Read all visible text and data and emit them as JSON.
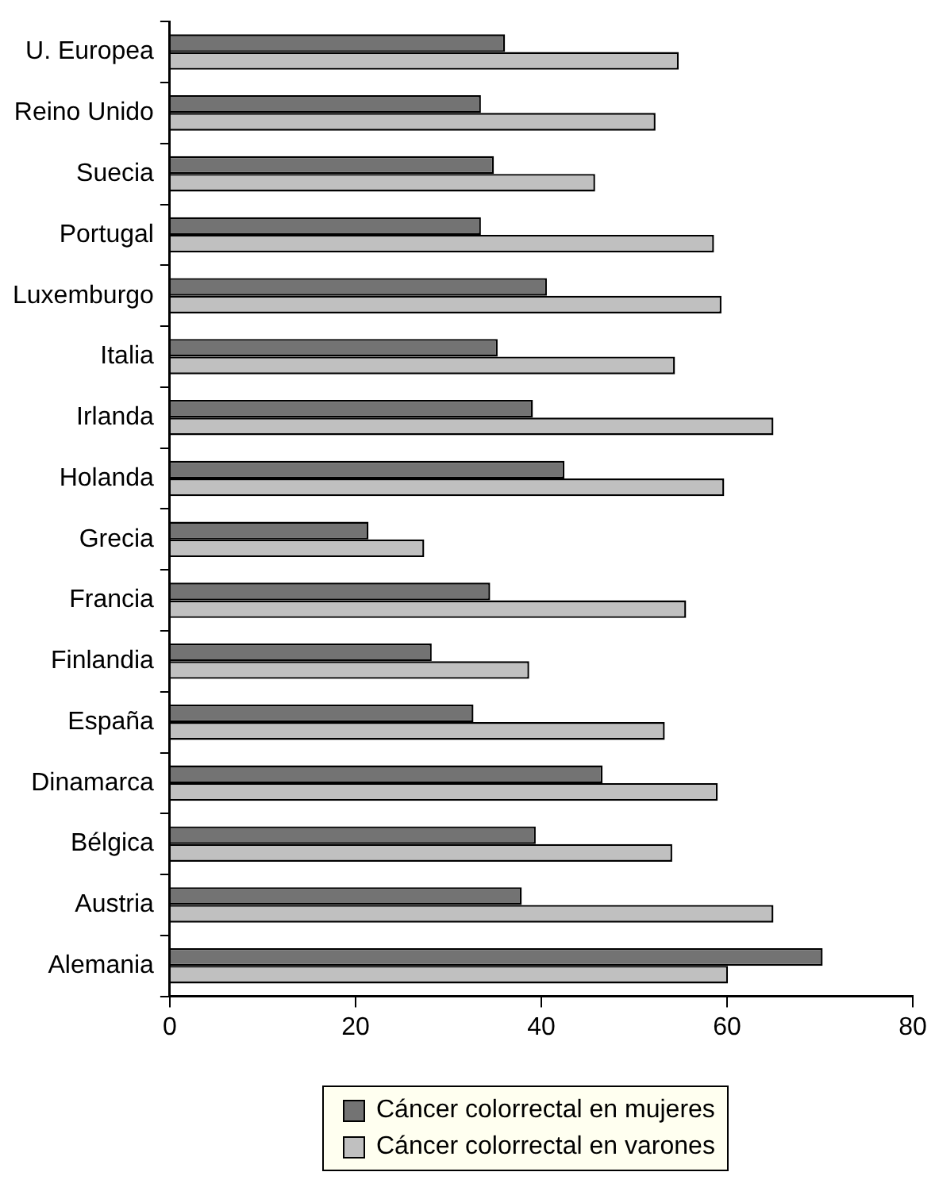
{
  "chart_data": {
    "type": "bar",
    "orientation": "horizontal",
    "categories": [
      "U. Europea",
      "Reino Unido",
      "Suecia",
      "Portugal",
      "Luxemburgo",
      "Italia",
      "Irlanda",
      "Holanda",
      "Grecia",
      "Francia",
      "Finlandia",
      "España",
      "Dinamarca",
      "Bélgica",
      "Austria",
      "Alemania"
    ],
    "series": [
      {
        "name": "Cáncer colorrectal en mujeres",
        "color": "#737373",
        "values": [
          36.1,
          33.5,
          34.9,
          33.5,
          40.6,
          35.3,
          39.1,
          42.5,
          21.4,
          34.5,
          28.2,
          32.7,
          46.6,
          39.4,
          37.9,
          70.3
        ]
      },
      {
        "name": "Cáncer colorrectal en varones",
        "color": "#c0c0c0",
        "values": [
          54.8,
          52.3,
          45.8,
          58.6,
          59.4,
          54.4,
          65.0,
          59.7,
          27.4,
          55.6,
          38.7,
          53.3,
          59.0,
          54.1,
          65.0,
          60.1
        ]
      }
    ],
    "xlim": [
      0,
      80
    ],
    "xticks": [
      0,
      20,
      40,
      60,
      80
    ],
    "grid": false,
    "legend": "bottom"
  }
}
